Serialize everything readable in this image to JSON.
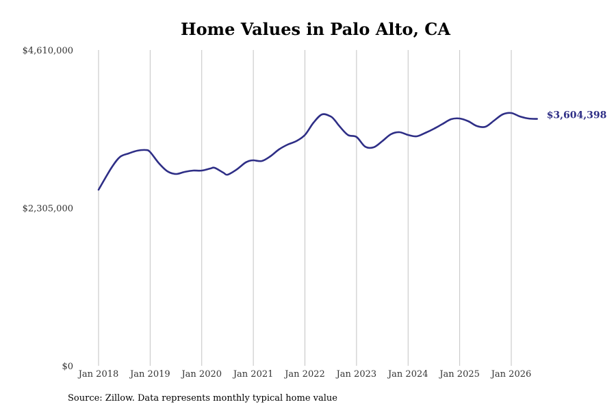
{
  "chart_data": {
    "type": "line",
    "title": "Home Values in Palo Alto, CA",
    "source": "Source: Zillow. Data represents monthly typical home value",
    "ylim": [
      0,
      4610000
    ],
    "y_ticks": [
      {
        "value": 0,
        "label": "$0"
      },
      {
        "value": 2305000,
        "label": "$2,305,000"
      },
      {
        "value": 4610000,
        "label": "$4,610,000"
      }
    ],
    "x_ticks": [
      {
        "value": "2018-01",
        "label": "Jan 2018"
      },
      {
        "value": "2019-01",
        "label": "Jan 2019"
      },
      {
        "value": "2020-01",
        "label": "Jan 2020"
      },
      {
        "value": "2021-01",
        "label": "Jan 2021"
      },
      {
        "value": "2022-01",
        "label": "Jan 2022"
      },
      {
        "value": "2023-01",
        "label": "Jan 2023"
      },
      {
        "value": "2024-01",
        "label": "Jan 2024"
      },
      {
        "value": "2025-01",
        "label": "Jan 2025"
      },
      {
        "value": "2026-01",
        "label": "Jan 2026"
      }
    ],
    "grid": "vertical",
    "series": [
      {
        "color": "#2e2e86",
        "end_label": "$3,604,398",
        "x": [
          "2018-01",
          "2018-04",
          "2018-06",
          "2018-08",
          "2018-10",
          "2018-12",
          "2019-01",
          "2019-03",
          "2019-05",
          "2019-07",
          "2019-09",
          "2019-11",
          "2020-01",
          "2020-03",
          "2020-04",
          "2020-06",
          "2020-07",
          "2020-09",
          "2020-11",
          "2020-12",
          "2021-01",
          "2021-03",
          "2021-05",
          "2021-07",
          "2021-09",
          "2021-11",
          "2022-01",
          "2022-03",
          "2022-05",
          "2022-07",
          "2022-08",
          "2022-09",
          "2022-11",
          "2023-01",
          "2023-03",
          "2023-05",
          "2023-07",
          "2023-09",
          "2023-11",
          "2024-01",
          "2024-03",
          "2024-05",
          "2024-07",
          "2024-09",
          "2024-11",
          "2025-01",
          "2025-03",
          "2025-05",
          "2025-07",
          "2025-09",
          "2025-11",
          "2026-01",
          "2026-03",
          "2026-05",
          "2026-07"
        ],
        "y": [
          2570000,
          2890000,
          3050000,
          3100000,
          3140000,
          3150000,
          3120000,
          2960000,
          2840000,
          2800000,
          2830000,
          2850000,
          2850000,
          2880000,
          2890000,
          2820000,
          2790000,
          2860000,
          2960000,
          2990000,
          3000000,
          2990000,
          3060000,
          3160000,
          3230000,
          3280000,
          3370000,
          3550000,
          3670000,
          3640000,
          3580000,
          3500000,
          3370000,
          3340000,
          3200000,
          3190000,
          3280000,
          3380000,
          3410000,
          3370000,
          3350000,
          3400000,
          3460000,
          3530000,
          3600000,
          3610000,
          3570000,
          3500000,
          3490000,
          3580000,
          3670000,
          3690000,
          3640000,
          3610000,
          3604398
        ]
      }
    ]
  }
}
